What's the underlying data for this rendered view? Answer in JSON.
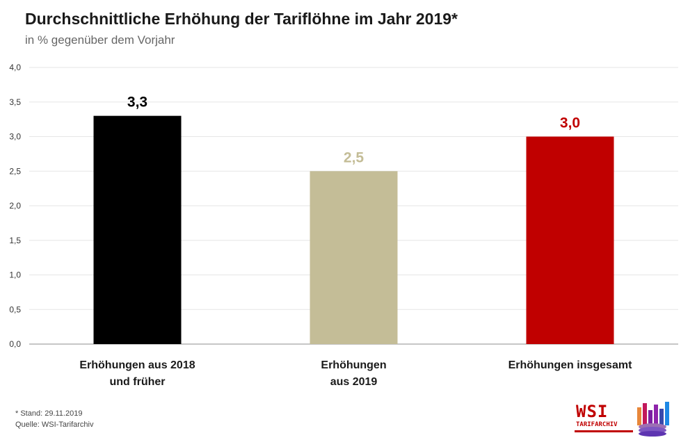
{
  "header": {
    "title": "Durchschnittliche Erhöhung der Tariflöhne im Jahr 2019*",
    "subtitle": "in % gegenüber dem Vorjahr"
  },
  "footer": {
    "note": "* Stand: 29.11.2019",
    "source": "Quelle: WSI-Tarifarchiv"
  },
  "logo": {
    "text": "WSI",
    "subtext": "TARIFARCHIV"
  },
  "chart_data": {
    "type": "bar",
    "title": "Durchschnittliche Erhöhung der Tariflöhne im Jahr 2019*",
    "subtitle": "in % gegenüber dem Vorjahr",
    "xlabel": "",
    "ylabel": "",
    "ylim": [
      0,
      4
    ],
    "yticks": [
      "0,0",
      "0,5",
      "1,0",
      "1,5",
      "2,0",
      "2,5",
      "3,0",
      "3,5",
      "4,0"
    ],
    "grid": true,
    "categories": [
      [
        "Erhöhungen aus 2018",
        "und früher"
      ],
      [
        "Erhöhungen",
        "aus 2019"
      ],
      [
        "Erhöhungen insgesamt"
      ]
    ],
    "values": [
      3.3,
      2.5,
      3.0
    ],
    "data_labels": [
      "3,3",
      "2,5",
      "3,0"
    ],
    "colors": [
      "#000000",
      "#c4bd97",
      "#c00000"
    ]
  }
}
